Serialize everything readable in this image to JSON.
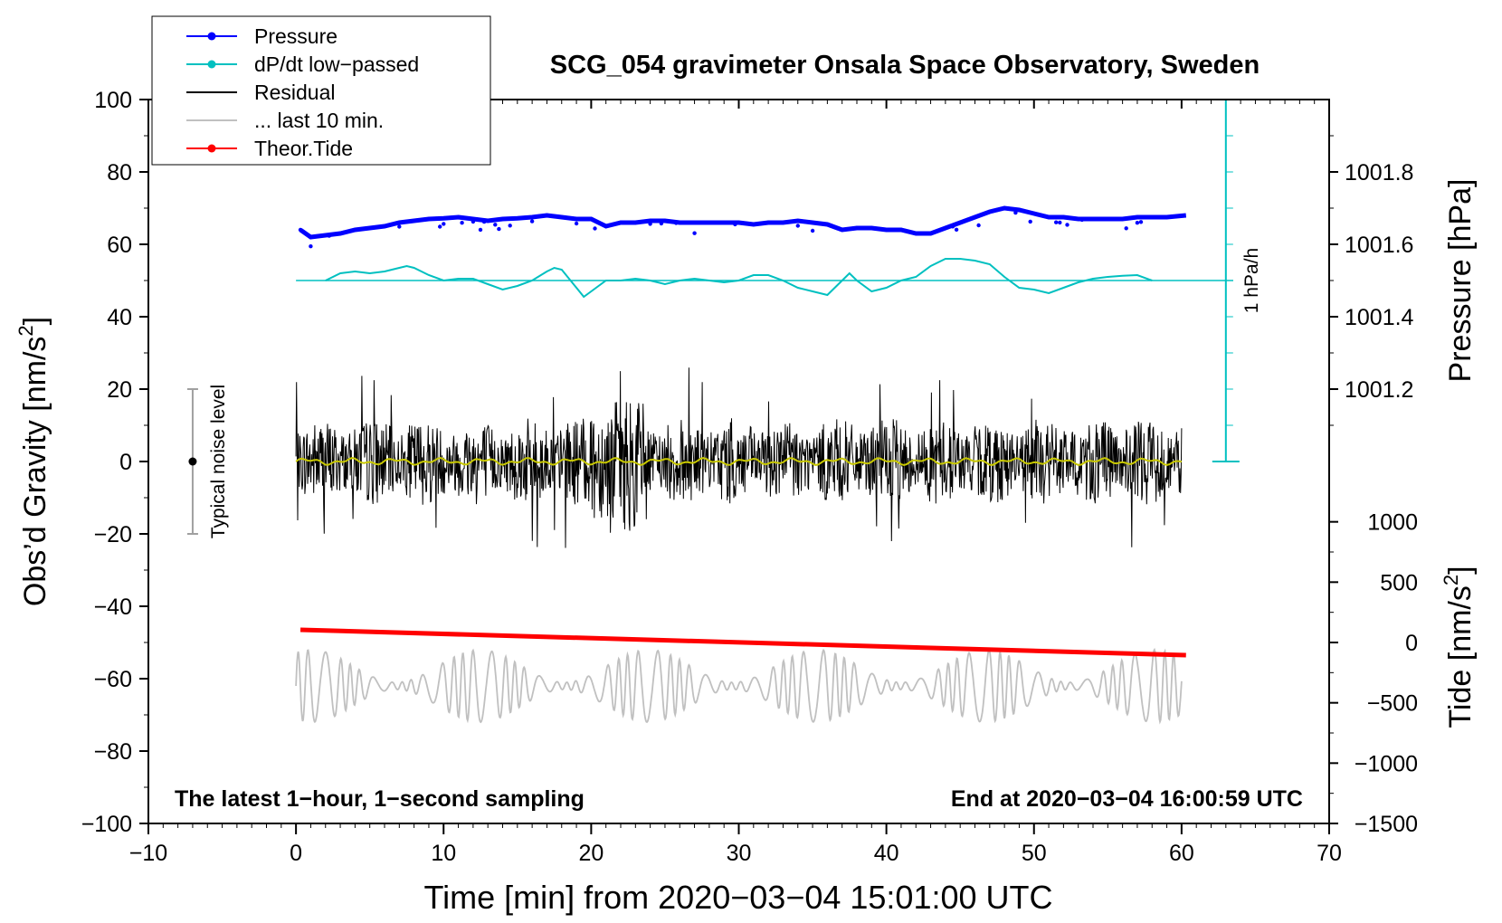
{
  "chart_data": {
    "type": "line",
    "title": "SCG_054 gravimeter Onsala Space Observatory, Sweden",
    "xlabel": "Time [min] from 2020−03−04 15:01:00 UTC",
    "ylabel_left_main": "Obs’d Gravity [nm/s",
    "ylabel_left_sup": "2",
    "ylabel_left_end": "]",
    "ylabel_right_pressure": "Pressure [hPa]",
    "ylabel_right_tide_main": "Tide [nm/s",
    "ylabel_right_tide_sup": "2",
    "ylabel_right_tide_end": "]",
    "xlim": [
      -10,
      70
    ],
    "ylim": [
      -100,
      100
    ],
    "x_ticks": [
      "−10",
      "0",
      "10",
      "20",
      "30",
      "40",
      "50",
      "60",
      "70"
    ],
    "x_tick_values": [
      -10,
      0,
      10,
      20,
      30,
      40,
      50,
      60,
      70
    ],
    "y_ticks": [
      "100",
      "80",
      "60",
      "40",
      "20",
      "0",
      "−20",
      "−40",
      "−60",
      "−80",
      "−100"
    ],
    "y_tick_values": [
      100,
      80,
      60,
      40,
      20,
      0,
      -20,
      -40,
      -60,
      -80,
      -100
    ],
    "pressure_ticks": [
      "1001.8",
      "1001.6",
      "1001.4",
      "1001.2"
    ],
    "pressure_tick_values": [
      1001.8,
      1001.6,
      1001.4,
      1001.2
    ],
    "pressure_axis_map": {
      "hpa_at_y0": 1001.0,
      "gravity_units_per_hpa": 100
    },
    "tide_ticks": [
      "1000",
      "500",
      "0",
      "−500",
      "−1000",
      "−1500"
    ],
    "tide_tick_values": [
      1000,
      500,
      0,
      -500,
      -1000,
      -1500
    ],
    "tide_axis_map": {
      "tide_at_ymin": -1500,
      "tide_at_y0_equiv": 1500
    },
    "legend": [
      {
        "label": "Pressure",
        "color": "#0000ff",
        "marker": "dot"
      },
      {
        "label": "dP/dt low−passed",
        "color": "#00c0c0",
        "marker": "dot"
      },
      {
        "label": "Residual",
        "color": "#000000",
        "marker": "none"
      },
      {
        "label": "... last 10 min.",
        "color": "#c0c0c0",
        "marker": "none"
      },
      {
        "label": "Theor.Tide",
        "color": "#ff0000",
        "marker": "dot"
      }
    ],
    "legend_position": "top-left",
    "annotation_left": "The latest 1−hour, 1−second sampling",
    "annotation_right": "End at 2020−03−04 16:00:59 UTC",
    "noise_label": "Typical noise level",
    "noise_range": [
      -20,
      20
    ],
    "noise_x": -7,
    "dpdt_scale_label": "1 hPa/h",
    "dpdt_scale": {
      "x": 63,
      "range": [
        0,
        100
      ],
      "baseline_y": 50,
      "units_per_hpa_h": 100
    },
    "series": [
      {
        "name": "Pressure",
        "color": "#0000ff",
        "x": [
          0.3,
          1,
          2,
          3,
          4,
          5,
          6,
          7,
          8,
          9,
          10,
          11,
          12,
          13,
          14,
          15,
          16,
          17,
          18,
          19,
          20,
          21,
          22,
          23,
          24,
          25,
          26,
          27,
          28,
          29,
          30,
          31,
          32,
          33,
          34,
          35,
          36,
          37,
          38,
          39,
          40,
          41,
          42,
          43,
          44,
          45,
          46,
          47,
          48,
          49,
          50,
          51,
          52,
          53,
          54,
          55,
          56,
          57,
          58,
          59,
          60.3
        ],
        "values": [
          64,
          62,
          62.5,
          63,
          64,
          64.5,
          65,
          66,
          66.5,
          67,
          67.2,
          67.5,
          67,
          66.5,
          67,
          67.2,
          67.5,
          68,
          67.5,
          67,
          67,
          65,
          66,
          66,
          66.5,
          66.5,
          66,
          66,
          66,
          66,
          66,
          65.5,
          66,
          66,
          66.5,
          66,
          65.5,
          64,
          64.5,
          64.5,
          64,
          64,
          63,
          63,
          64.5,
          66,
          67.5,
          69,
          70,
          69.5,
          68.5,
          67.5,
          67.5,
          67,
          67,
          67,
          67,
          67.5,
          67.5,
          67.5,
          68
        ]
      },
      {
        "name": "dP/dt low-passed",
        "color": "#00c0c0",
        "x": [
          2,
          3,
          4,
          5,
          6,
          7,
          7.5,
          8,
          9,
          10,
          11,
          12,
          13,
          14,
          15,
          16,
          17,
          17.5,
          18,
          19,
          19.5,
          20,
          21,
          22,
          23,
          24,
          25,
          26,
          27,
          28,
          29,
          30,
          31,
          32,
          33,
          34,
          35,
          36,
          37,
          37.5,
          38,
          39,
          40,
          41,
          42,
          43,
          44,
          45,
          46,
          47,
          48,
          49,
          50,
          51,
          52,
          53,
          54,
          55,
          56,
          57,
          58
        ],
        "values": [
          50,
          52,
          52.5,
          52,
          52.5,
          53.5,
          54,
          53.5,
          51.5,
          50,
          50.5,
          50.5,
          49,
          47.5,
          48.5,
          50,
          52.5,
          53.5,
          53,
          48,
          45.5,
          47,
          50,
          50,
          50.5,
          50,
          49,
          50,
          50.5,
          50,
          49.5,
          50,
          51.5,
          51.5,
          50,
          48,
          47,
          46,
          50,
          52,
          50,
          47,
          48,
          50,
          51,
          54,
          56,
          56,
          55.5,
          54.5,
          51,
          48,
          47.5,
          46.5,
          48,
          49.5,
          50.5,
          51,
          51.3,
          51.5,
          50
        ]
      },
      {
        "name": "Theor.Tide",
        "color": "#ff0000",
        "x": [
          0.3,
          60.3
        ],
        "values": [
          -46.5,
          -53.5
        ]
      }
    ],
    "residual": {
      "x_range": [
        0,
        60
      ],
      "amplitude_typical": 12,
      "peak_max": 27,
      "peak_min": -24,
      "mean": 0
    },
    "last_10_min": {
      "x_range": [
        0,
        60
      ],
      "offset": -62,
      "amplitude": 10
    }
  }
}
